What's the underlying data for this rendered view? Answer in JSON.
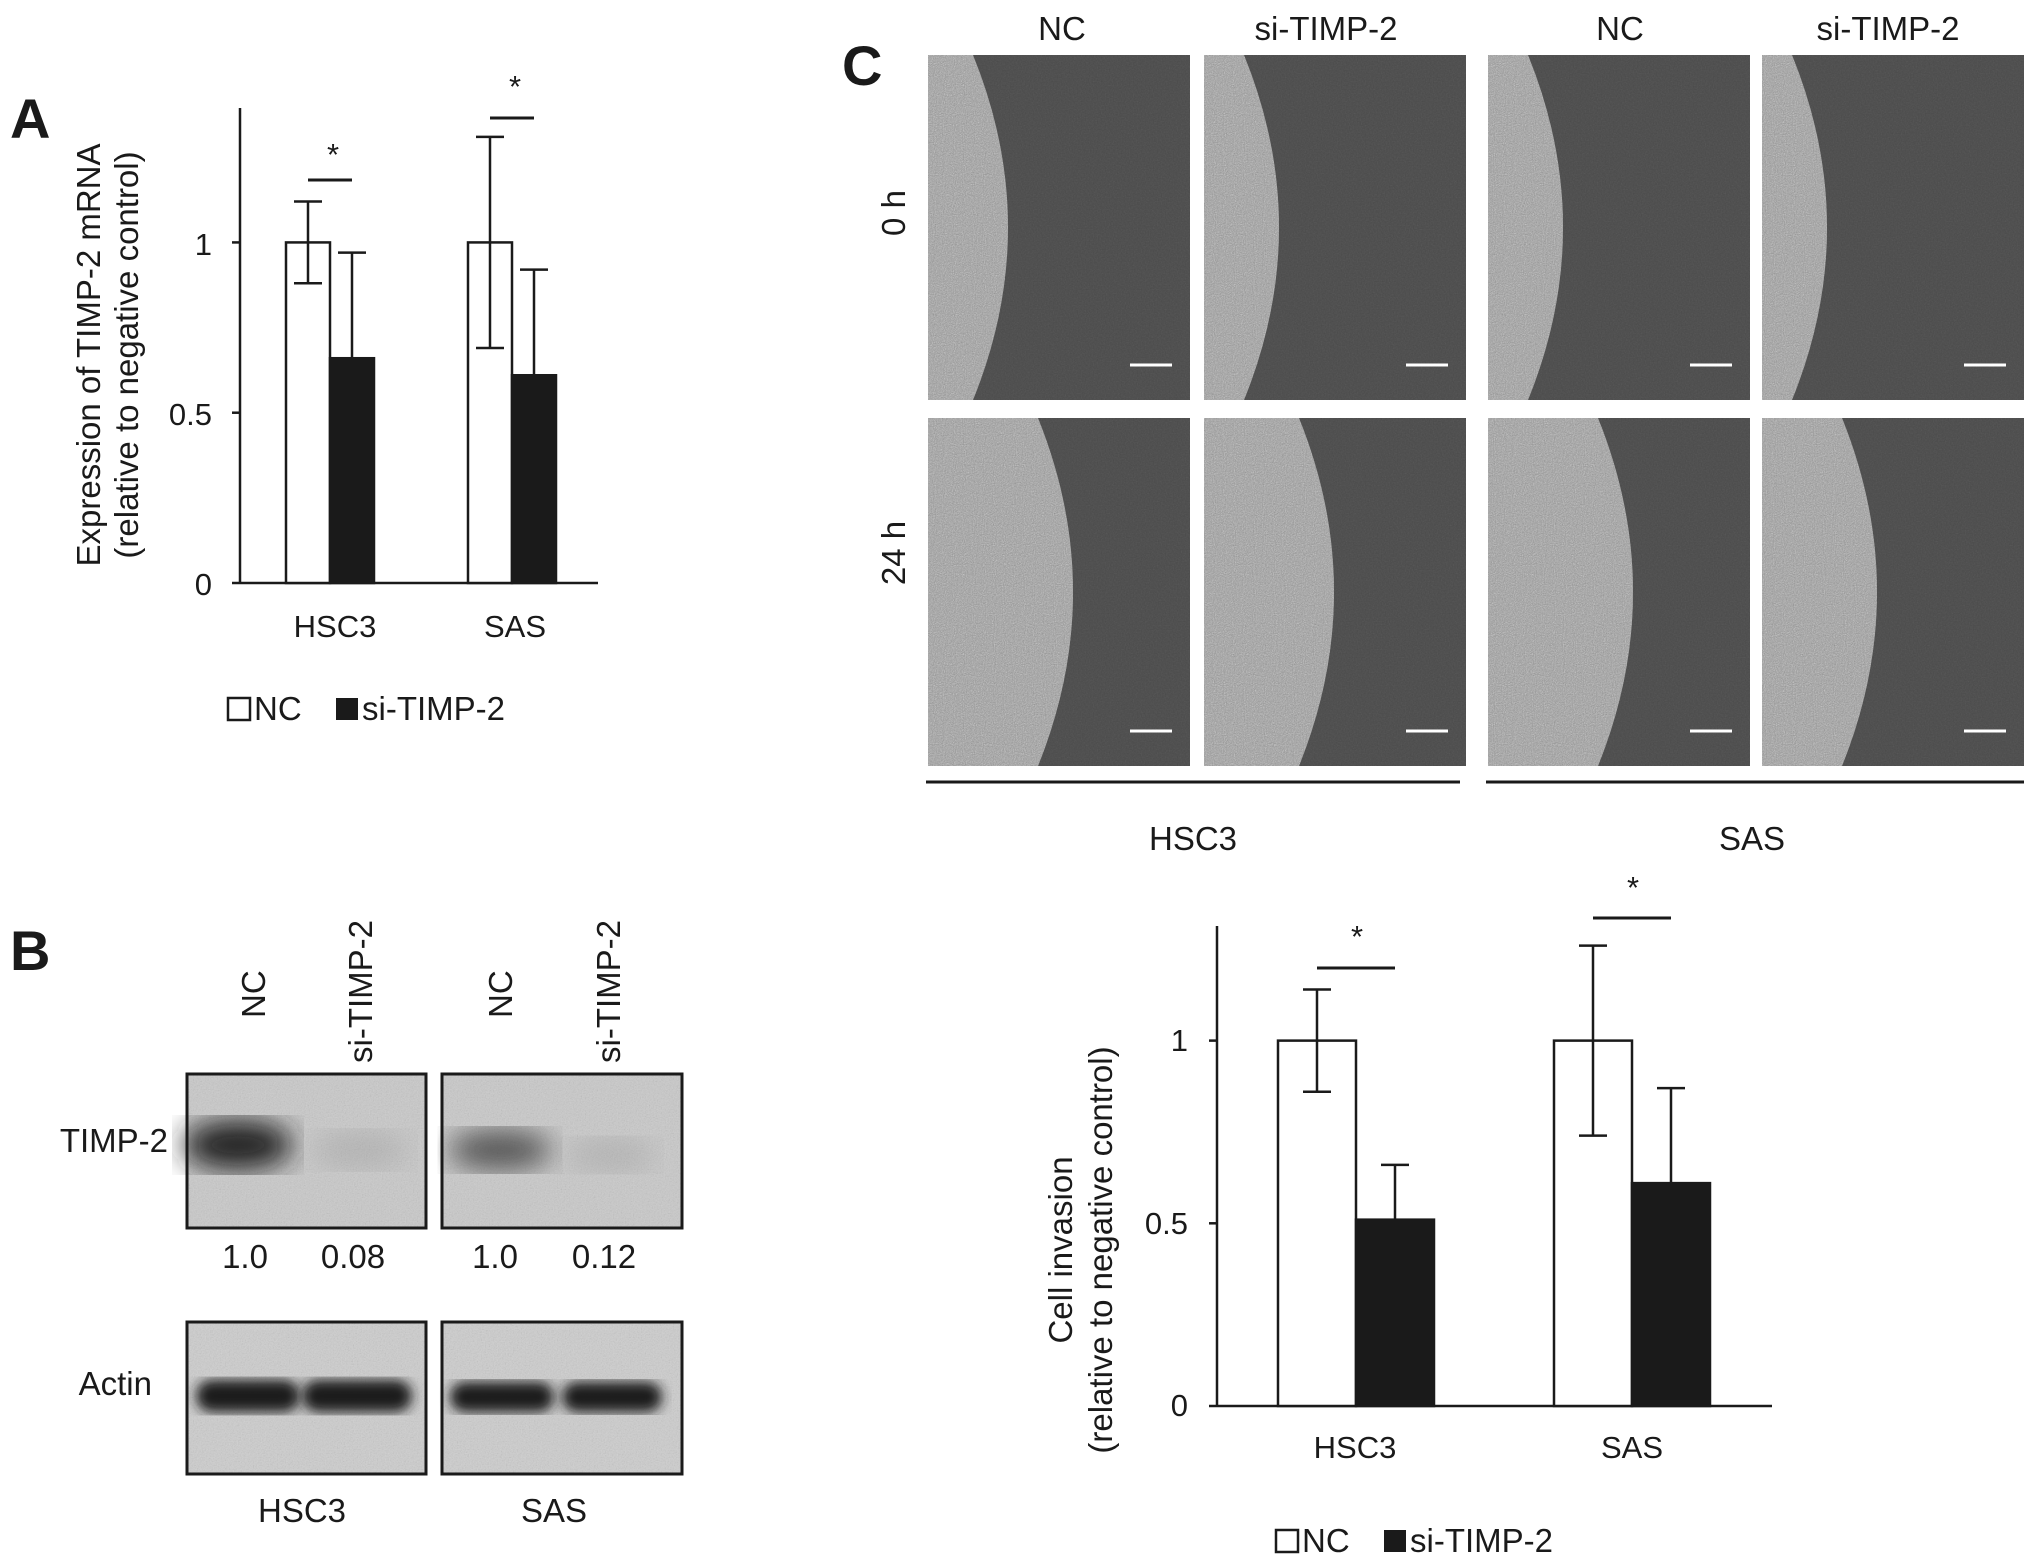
{
  "panels": {
    "a": "A",
    "b": "B",
    "c": "C"
  },
  "chart_data": [
    {
      "id": "A",
      "type": "bar",
      "categories": [
        "HSC3",
        "SAS"
      ],
      "series": [
        {
          "name": "NC",
          "values": [
            1.0,
            1.0
          ],
          "error": [
            0.12,
            0.31
          ],
          "color": "#ffffff"
        },
        {
          "name": "si-TIMP-2",
          "values": [
            0.66,
            0.61
          ],
          "error": [
            0.31,
            0.31
          ],
          "color": "#1a1a1a"
        }
      ],
      "ylabel_line1": "Expression of TIMP-2 mRNA",
      "ylabel_line2": "(relative to negative control)",
      "ylim": [
        0,
        1.38
      ],
      "yticks": [
        0,
        0.5,
        1
      ],
      "ytick_labels": [
        "0",
        "0.5",
        "1"
      ],
      "significance": [
        "*",
        "*"
      ],
      "legend": "bottom",
      "grid": false
    },
    {
      "id": "C-quant",
      "type": "bar",
      "categories": [
        "HSC3",
        "SAS"
      ],
      "series": [
        {
          "name": "NC",
          "values": [
            1.0,
            1.0
          ],
          "error": [
            0.14,
            0.26
          ],
          "color": "#ffffff"
        },
        {
          "name": "si-TIMP-2",
          "values": [
            0.51,
            0.61
          ],
          "error": [
            0.15,
            0.26
          ],
          "color": "#1a1a1a"
        }
      ],
      "ylabel_line1": "Cell invasion",
      "ylabel_line2": "(relative to negative control)",
      "ylim": [
        0,
        1.3
      ],
      "yticks": [
        0,
        0.5,
        1
      ],
      "ytick_labels": [
        "0",
        "0.5",
        "1"
      ],
      "significance": [
        "*",
        "*"
      ],
      "legend": "bottom",
      "grid": false
    }
  ],
  "legend": {
    "nc": "NC",
    "si": "si-TIMP-2"
  },
  "blot": {
    "lanes": [
      "NC",
      "si-TIMP-2",
      "NC",
      "si-TIMP-2"
    ],
    "rows": [
      {
        "label": "TIMP-2",
        "intensities": [
          1.0,
          0.08,
          1.0,
          0.12
        ]
      },
      {
        "label": "Actin"
      }
    ],
    "quant_labels": [
      "1.0",
      "0.08",
      "1.0",
      "0.12"
    ],
    "groups": [
      "HSC3",
      "SAS"
    ]
  },
  "scratch": {
    "columns": [
      "NC",
      "si-TIMP-2",
      "NC",
      "si-TIMP-2"
    ],
    "rows": [
      "0 h",
      "24 h"
    ],
    "groups": [
      "HSC3",
      "SAS"
    ]
  }
}
